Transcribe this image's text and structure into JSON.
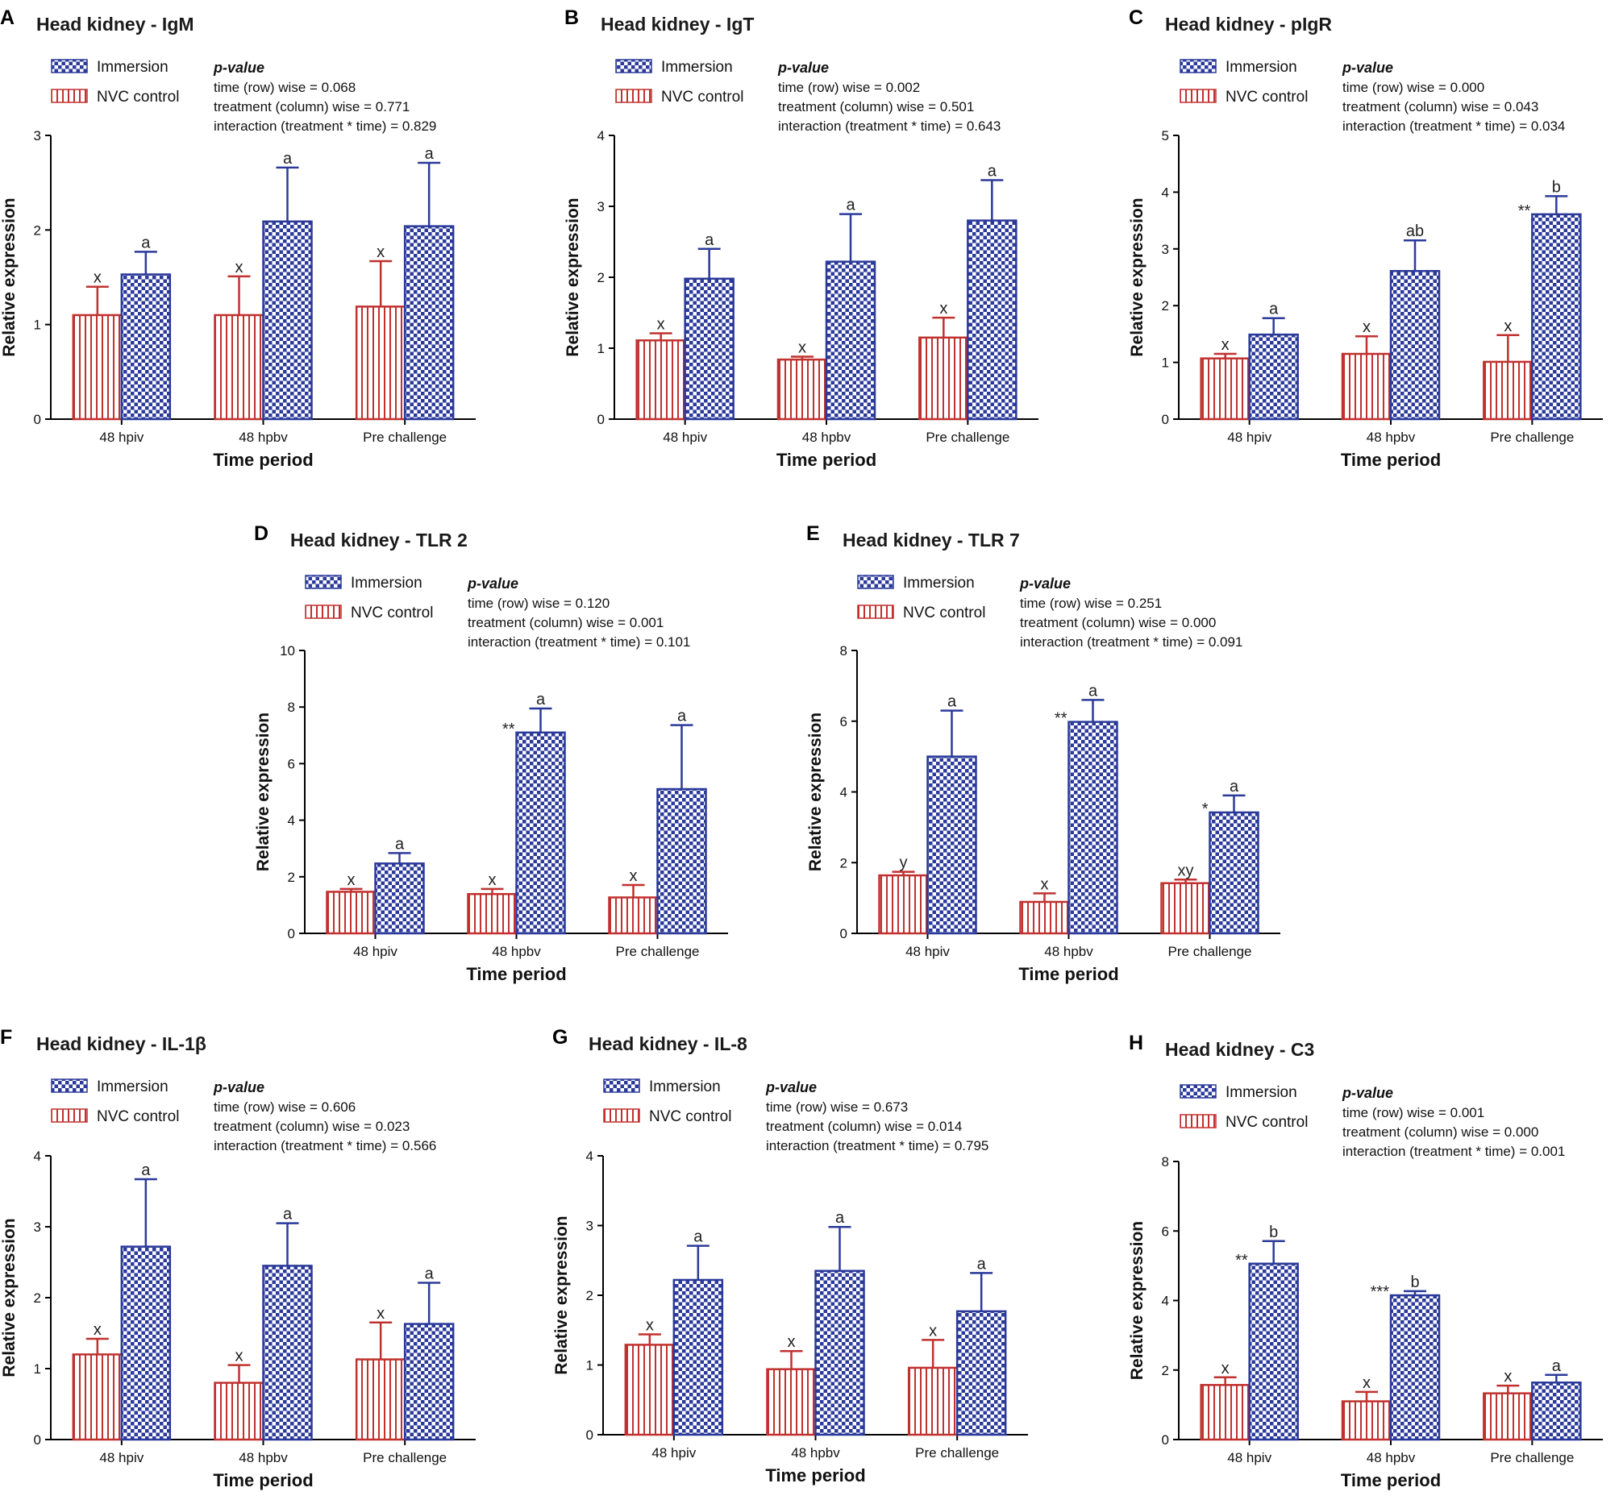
{
  "figure": {
    "legend_labels": {
      "immersion": "Immersion",
      "control": "NVC control"
    },
    "pvalue_title": "p-value",
    "colors": {
      "immersion": "#2b3a9a",
      "control": "#c0312f",
      "axis": "#000000"
    }
  },
  "chart_data": [
    {
      "panel": "A",
      "type": "bar",
      "title": "Head kidney - IgM",
      "xlabel": "Time period",
      "ylabel": "Relative expression",
      "categories": [
        "48 hpiv",
        "48 hpbv",
        "Pre challenge"
      ],
      "ylim": [
        0,
        3
      ],
      "yticks": [
        "0",
        "1",
        "2",
        "3"
      ],
      "series": [
        {
          "name": "NVC control",
          "values": [
            1.1,
            1.1,
            1.19
          ],
          "errors": [
            0.3,
            0.41,
            0.48
          ],
          "labels": [
            "x",
            "x",
            "x"
          ],
          "stars": [
            "",
            "",
            ""
          ]
        },
        {
          "name": "Immersion",
          "values": [
            1.53,
            2.09,
            2.04
          ],
          "errors": [
            0.24,
            0.57,
            0.67
          ],
          "labels": [
            "a",
            "a",
            "a"
          ],
          "stars": [
            "",
            "",
            ""
          ]
        }
      ],
      "pvalues": [
        "time (row) wise = 0.068",
        "treatment (column) wise = 0.771",
        "interaction (treatment * time)  = 0.829"
      ]
    },
    {
      "panel": "B",
      "type": "bar",
      "title": "Head kidney - IgT",
      "xlabel": "Time period",
      "ylabel": "Relative expression",
      "categories": [
        "48 hpiv",
        "48 hpbv",
        "Pre challenge"
      ],
      "ylim": [
        0,
        4
      ],
      "yticks": [
        "0",
        "1",
        "2",
        "3",
        "4"
      ],
      "series": [
        {
          "name": "NVC control",
          "values": [
            1.11,
            0.84,
            1.15
          ],
          "errors": [
            0.1,
            0.04,
            0.28
          ],
          "labels": [
            "x",
            "x",
            "x"
          ],
          "stars": [
            "",
            "",
            ""
          ]
        },
        {
          "name": "Immersion",
          "values": [
            1.98,
            2.22,
            2.8
          ],
          "errors": [
            0.42,
            0.67,
            0.57
          ],
          "labels": [
            "a",
            "a",
            "a"
          ],
          "stars": [
            "",
            "",
            ""
          ]
        }
      ],
      "pvalues": [
        "time (row) wise = 0.002",
        "treatment (column) wise = 0.501",
        "interaction (treatment * time)  = 0.643"
      ]
    },
    {
      "panel": "C",
      "type": "bar",
      "title": "Head kidney - pIgR",
      "xlabel": "Time period",
      "ylabel": "Relative expression",
      "categories": [
        "48 hpiv",
        "48 hpbv",
        "Pre challenge"
      ],
      "ylim": [
        0,
        5
      ],
      "yticks": [
        "0",
        "1",
        "2",
        "3",
        "4",
        "5"
      ],
      "series": [
        {
          "name": "NVC control",
          "values": [
            1.07,
            1.15,
            1.01
          ],
          "errors": [
            0.08,
            0.31,
            0.47
          ],
          "labels": [
            "x",
            "x",
            "x"
          ],
          "stars": [
            "",
            "",
            ""
          ]
        },
        {
          "name": "Immersion",
          "values": [
            1.49,
            2.61,
            3.61
          ],
          "errors": [
            0.29,
            0.54,
            0.32
          ],
          "labels": [
            "a",
            "ab",
            "b"
          ],
          "stars": [
            "",
            "",
            "**"
          ]
        }
      ],
      "pvalues": [
        "time (row) wise = 0.000",
        "treatment (column) wise = 0.043",
        "interaction (treatment * time)  = 0.034"
      ]
    },
    {
      "panel": "D",
      "type": "bar",
      "title": "Head kidney - TLR 2",
      "xlabel": "Time period",
      "ylabel": "Relative expression",
      "categories": [
        "48 hpiv",
        "48 hpbv",
        "Pre challenge"
      ],
      "ylim": [
        0,
        10
      ],
      "yticks": [
        "0",
        "2",
        "4",
        "6",
        "8",
        "10"
      ],
      "series": [
        {
          "name": "NVC control",
          "values": [
            1.47,
            1.39,
            1.27
          ],
          "errors": [
            0.1,
            0.18,
            0.44
          ],
          "labels": [
            "x",
            "x",
            "x"
          ],
          "stars": [
            "",
            "",
            ""
          ]
        },
        {
          "name": "Immersion",
          "values": [
            2.47,
            7.1,
            5.1
          ],
          "errors": [
            0.37,
            0.85,
            2.26
          ],
          "labels": [
            "a",
            "a",
            "a"
          ],
          "stars": [
            "",
            "**",
            ""
          ]
        }
      ],
      "pvalues": [
        "time (row) wise = 0.120",
        "treatment (column) wise = 0.001",
        "interaction (treatment * time)  = 0.101"
      ]
    },
    {
      "panel": "E",
      "type": "bar",
      "title": "Head kidney - TLR 7",
      "xlabel": "Time period",
      "ylabel": "Relative expression",
      "categories": [
        "48 hpiv",
        "48 hpbv",
        "Pre challenge"
      ],
      "ylim": [
        0,
        8
      ],
      "yticks": [
        "0",
        "2",
        "4",
        "6",
        "8"
      ],
      "series": [
        {
          "name": "NVC control",
          "values": [
            1.64,
            0.89,
            1.42
          ],
          "errors": [
            0.1,
            0.24,
            0.1
          ],
          "labels": [
            "y",
            "x",
            "xy"
          ],
          "stars": [
            "",
            "",
            ""
          ]
        },
        {
          "name": "Immersion",
          "values": [
            5.0,
            5.98,
            3.42
          ],
          "errors": [
            1.3,
            0.62,
            0.48
          ],
          "labels": [
            "a",
            "a",
            "a"
          ],
          "stars": [
            "",
            "**",
            "*"
          ]
        }
      ],
      "pvalues": [
        "time (row) wise = 0.251",
        "treatment (column) wise = 0.000",
        "interaction (treatment * time)  = 0.091"
      ]
    },
    {
      "panel": "F",
      "type": "bar",
      "title": "Head kidney - IL-1β",
      "xlabel": "Time period",
      "ylabel": "Relative expression",
      "categories": [
        "48 hpiv",
        "48 hpbv",
        "Pre challenge"
      ],
      "ylim": [
        0,
        4
      ],
      "yticks": [
        "0",
        "1",
        "2",
        "3",
        "4"
      ],
      "series": [
        {
          "name": "NVC control",
          "values": [
            1.2,
            0.8,
            1.13
          ],
          "errors": [
            0.22,
            0.25,
            0.52
          ],
          "labels": [
            "x",
            "x",
            "x"
          ],
          "stars": [
            "",
            "",
            ""
          ]
        },
        {
          "name": "Immersion",
          "values": [
            2.72,
            2.45,
            1.63
          ],
          "errors": [
            0.95,
            0.6,
            0.58
          ],
          "labels": [
            "a",
            "a",
            "a"
          ],
          "stars": [
            "",
            "",
            ""
          ]
        }
      ],
      "pvalues": [
        "time (row) wise = 0.606",
        "treatment (column) wise = 0.023",
        "interaction (treatment * time)  = 0.566"
      ]
    },
    {
      "panel": "G",
      "type": "bar",
      "title": "Head kidney - IL-8",
      "xlabel": "Time period",
      "ylabel": "Relative expression",
      "categories": [
        "48 hpiv",
        "48 hpbv",
        "Pre challenge"
      ],
      "ylim": [
        0,
        4
      ],
      "yticks": [
        "0",
        "1",
        "2",
        "3",
        "4"
      ],
      "series": [
        {
          "name": "NVC control",
          "values": [
            1.29,
            0.94,
            0.96
          ],
          "errors": [
            0.15,
            0.26,
            0.4
          ],
          "labels": [
            "x",
            "x",
            "x"
          ],
          "stars": [
            "",
            "",
            ""
          ]
        },
        {
          "name": "Immersion",
          "values": [
            2.22,
            2.35,
            1.77
          ],
          "errors": [
            0.49,
            0.63,
            0.55
          ],
          "labels": [
            "a",
            "a",
            "a"
          ],
          "stars": [
            "",
            "",
            ""
          ]
        }
      ],
      "pvalues": [
        "time (row) wise = 0.673",
        "treatment (column) wise = 0.014",
        "interaction (treatment * time)  = 0.795"
      ]
    },
    {
      "panel": "H",
      "type": "bar",
      "title": "Head kidney - C3",
      "xlabel": "Time period",
      "ylabel": "Relative expression",
      "categories": [
        "48 hpiv",
        "48 hpbv",
        "Pre challenge"
      ],
      "ylim": [
        0,
        8
      ],
      "yticks": [
        "0",
        "2",
        "4",
        "6",
        "8"
      ],
      "series": [
        {
          "name": "NVC control",
          "values": [
            1.57,
            1.1,
            1.33
          ],
          "errors": [
            0.22,
            0.27,
            0.22
          ],
          "labels": [
            "x",
            "x",
            "x"
          ],
          "stars": [
            "",
            "",
            ""
          ]
        },
        {
          "name": "Immersion",
          "values": [
            5.06,
            4.15,
            1.64
          ],
          "errors": [
            0.65,
            0.12,
            0.22
          ],
          "labels": [
            "b",
            "b",
            "a"
          ],
          "stars": [
            "**",
            "***",
            ""
          ]
        }
      ],
      "pvalues": [
        "time (row) wise = 0.001",
        "treatment (column) wise = 0.000",
        "interaction (treatment * time)  = 0.001"
      ]
    }
  ]
}
